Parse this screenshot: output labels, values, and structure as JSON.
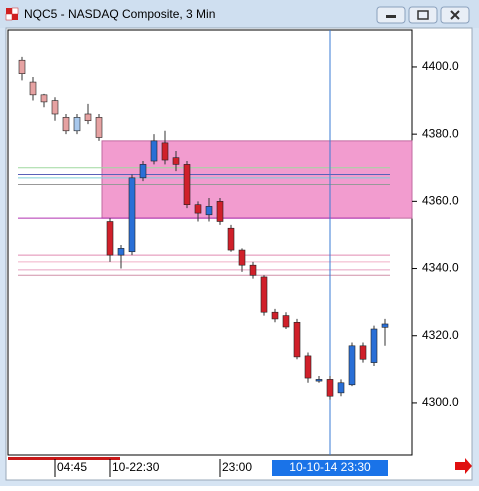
{
  "window": {
    "title": "NQC5 - NASDAQ Composite, 3 Min"
  },
  "chart_data": {
    "type": "candlestick",
    "categories": [
      null,
      null,
      null,
      "04:45",
      null,
      null,
      null,
      null,
      "10-22:30",
      null,
      null,
      null,
      null,
      null,
      null,
      null,
      null,
      null,
      "23:00",
      null,
      null,
      null,
      null,
      null,
      null,
      null,
      null,
      null,
      "10-10-14 23:30",
      null,
      null,
      null,
      null,
      null
    ],
    "open": [
      4402,
      4395.5,
      4391.7,
      4390,
      4385,
      4381,
      4386,
      4385,
      4354,
      4344,
      4345,
      4367,
      4372,
      4377.4,
      4373,
      4371,
      4359,
      4356,
      4360,
      4352,
      4345.5,
      4341,
      4337.5,
      4327,
      4326,
      4324,
      4314,
      4306.5,
      4307,
      4303,
      4305.4,
      4317,
      4312,
      4322.5
    ],
    "high": [
      4403,
      4397,
      4392,
      4391,
      4386,
      4386,
      4389,
      4386,
      4355,
      4347,
      4368,
      4372,
      4380,
      4381,
      4375,
      4372,
      4360,
      4361,
      4361,
      4353,
      4346,
      4342,
      4338,
      4328,
      4327,
      4325,
      4315,
      4308,
      4308,
      4307,
      4318,
      4318,
      4323,
      4325
    ],
    "low": [
      4396,
      4390,
      4388,
      4384,
      4380,
      4380,
      4383,
      4378,
      4342,
      4340,
      4344,
      4366,
      4371,
      4371,
      4369,
      4358,
      4354,
      4354,
      4353,
      4345,
      4339,
      4337,
      4326,
      4324,
      4322,
      4313,
      4306,
      4306,
      4301,
      4302,
      4305,
      4312,
      4311,
      4317
    ],
    "close": [
      4398,
      4391.7,
      4389.6,
      4386,
      4381,
      4385,
      4384,
      4379,
      4344,
      4346,
      4367,
      4371,
      4378,
      4372.3,
      4371,
      4359,
      4356.5,
      4358.5,
      4354,
      4345.5,
      4341,
      4338,
      4327,
      4325,
      4322.6,
      4313.7,
      4307.4,
      4307,
      4302,
      4306,
      4317,
      4313,
      4322,
      4323.5
    ],
    "up_color": "#2a6fd6",
    "down_color": "#d0202a",
    "pre_session_up_color": "#a8c8ec",
    "pre_session_down_color": "#e6a2a2",
    "session_start_index": 8,
    "ylim": [
      4284.5,
      4411
    ],
    "yticks": [
      {
        "value": 4300,
        "label": "4300.0"
      },
      {
        "value": 4320,
        "label": "4320.0"
      },
      {
        "value": 4340,
        "label": "4340.0"
      },
      {
        "value": 4360,
        "label": "4360.0"
      },
      {
        "value": 4380,
        "label": "4380.0"
      },
      {
        "value": 4400,
        "label": "4400.0"
      }
    ],
    "cursor_index": 28,
    "zone": {
      "range": [
        4355,
        4378
      ],
      "color": "#f29ccf"
    },
    "levels": [
      {
        "value": 4370,
        "color": "#9fd89f"
      },
      {
        "value": 4368,
        "color": "#5a62b8"
      },
      {
        "value": 4367,
        "color": "#7fd0d8"
      },
      {
        "value": 4365,
        "color": "#999999"
      },
      {
        "value": 4355,
        "color": "#b030b0"
      },
      {
        "value": 4344,
        "color": "#e08ab0"
      },
      {
        "value": 4342,
        "color": "#f0b0c8"
      },
      {
        "value": 4339.6,
        "color": "#e8a0c0"
      },
      {
        "value": 4338,
        "color": "#d090a8"
      }
    ]
  }
}
